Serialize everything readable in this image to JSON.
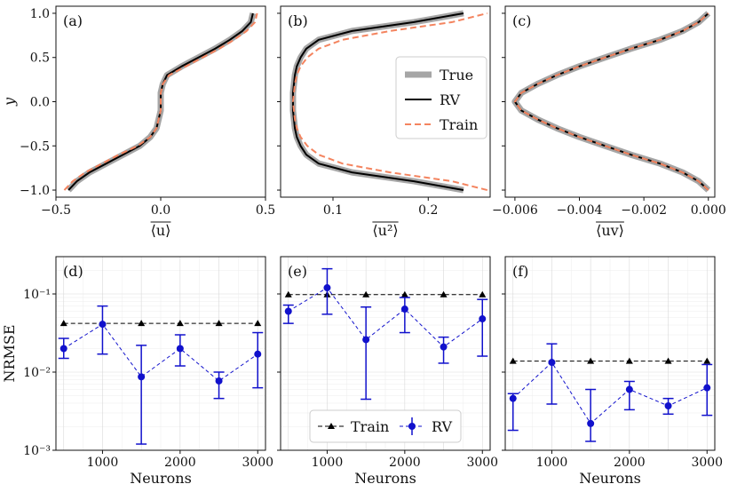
{
  "profile_panels": [
    {
      "label": "(a)",
      "xlabel": "⟨u⟩",
      "ylabel": "y",
      "xlim": [
        -0.5,
        0.5
      ],
      "xticks": [
        -0.5,
        0.0,
        0.5
      ],
      "xtick_labels": [
        "−0.5",
        "0.0",
        "0.5"
      ],
      "y": [
        -1.0,
        -0.9,
        -0.8,
        -0.7,
        -0.6,
        -0.5,
        -0.4,
        -0.3,
        -0.2,
        -0.1,
        0.0,
        0.1,
        0.2,
        0.3,
        0.4,
        0.5,
        0.6,
        0.7,
        0.8,
        0.9,
        1.0
      ],
      "true": [
        -0.44,
        -0.4,
        -0.34,
        -0.26,
        -0.18,
        -0.1,
        -0.05,
        -0.02,
        -0.01,
        0.0,
        0.0,
        0.0,
        0.01,
        0.03,
        0.1,
        0.18,
        0.26,
        0.33,
        0.39,
        0.43,
        0.44
      ],
      "rv": [
        -0.44,
        -0.4,
        -0.34,
        -0.26,
        -0.18,
        -0.1,
        -0.05,
        -0.02,
        -0.01,
        0.0,
        0.0,
        0.0,
        0.01,
        0.03,
        0.1,
        0.18,
        0.26,
        0.33,
        0.39,
        0.43,
        0.44
      ],
      "train": [
        -0.46,
        -0.42,
        -0.36,
        -0.28,
        -0.2,
        -0.11,
        -0.05,
        -0.02,
        -0.01,
        0.0,
        0.0,
        0.0,
        0.01,
        0.04,
        0.12,
        0.2,
        0.28,
        0.35,
        0.41,
        0.45,
        0.46
      ]
    },
    {
      "label": "(b)",
      "xlabel": "⟨u²⟩",
      "xlim": [
        0.045,
        0.265
      ],
      "xticks": [
        0.1,
        0.2
      ],
      "xtick_labels": [
        "0.1",
        "0.2"
      ],
      "y": [
        -1.0,
        -0.9,
        -0.8,
        -0.7,
        -0.6,
        -0.5,
        -0.4,
        -0.3,
        -0.2,
        -0.1,
        0.0,
        0.1,
        0.2,
        0.3,
        0.4,
        0.5,
        0.6,
        0.7,
        0.8,
        0.9,
        1.0
      ],
      "true": [
        0.237,
        0.185,
        0.12,
        0.085,
        0.072,
        0.066,
        0.062,
        0.06,
        0.059,
        0.058,
        0.058,
        0.058,
        0.059,
        0.06,
        0.062,
        0.066,
        0.072,
        0.085,
        0.12,
        0.185,
        0.237
      ],
      "rv": [
        0.237,
        0.185,
        0.12,
        0.085,
        0.072,
        0.066,
        0.062,
        0.06,
        0.059,
        0.058,
        0.058,
        0.058,
        0.059,
        0.06,
        0.062,
        0.066,
        0.072,
        0.085,
        0.12,
        0.185,
        0.237
      ],
      "train": [
        0.262,
        0.225,
        0.16,
        0.11,
        0.085,
        0.073,
        0.066,
        0.062,
        0.06,
        0.059,
        0.058,
        0.059,
        0.06,
        0.062,
        0.066,
        0.073,
        0.085,
        0.11,
        0.16,
        0.225,
        0.262
      ]
    },
    {
      "label": "(c)",
      "xlabel": "⟨uv⟩",
      "xlim": [
        -0.0063,
        0.0002
      ],
      "xticks": [
        -0.006,
        -0.004,
        -0.002,
        0.0
      ],
      "xtick_labels": [
        "−0.006",
        "−0.004",
        "−0.002",
        "0.000"
      ],
      "y": [
        -1.0,
        -0.9,
        -0.8,
        -0.7,
        -0.6,
        -0.5,
        -0.4,
        -0.3,
        -0.2,
        -0.1,
        0.0,
        0.1,
        0.2,
        0.3,
        0.4,
        0.5,
        0.6,
        0.7,
        0.8,
        0.9,
        1.0
      ],
      "true": [
        0.0,
        -0.0003,
        -0.0008,
        -0.0015,
        -0.0024,
        -0.0032,
        -0.004,
        -0.0047,
        -0.0053,
        -0.0058,
        -0.006,
        -0.0058,
        -0.0053,
        -0.0047,
        -0.004,
        -0.0032,
        -0.0024,
        -0.0015,
        -0.0008,
        -0.0003,
        0.0
      ],
      "rv": [
        0.0,
        -0.0003,
        -0.0008,
        -0.0015,
        -0.0024,
        -0.0032,
        -0.004,
        -0.0047,
        -0.0053,
        -0.0058,
        -0.006,
        -0.0058,
        -0.0053,
        -0.0047,
        -0.004,
        -0.0032,
        -0.0024,
        -0.0015,
        -0.0008,
        -0.0003,
        0.0
      ],
      "train": [
        0.0,
        -0.0003,
        -0.0008,
        -0.0015,
        -0.0024,
        -0.0032,
        -0.004,
        -0.0047,
        -0.0053,
        -0.0058,
        -0.006,
        -0.0058,
        -0.0053,
        -0.0047,
        -0.004,
        -0.0032,
        -0.0024,
        -0.0015,
        -0.0008,
        -0.0003,
        0.0
      ]
    }
  ],
  "profile_yticks": [
    -1.0,
    -0.5,
    0.0,
    0.5,
    1.0
  ],
  "profile_ytick_labels": [
    "−1.0",
    "−0.5",
    "0.0",
    "0.5",
    "1.0"
  ],
  "profile_legend": {
    "true": "True",
    "rv": "RV",
    "train": "Train"
  },
  "error_panels": [
    {
      "label": "(d)",
      "train": [
        0.042,
        0.042,
        0.042,
        0.042,
        0.042,
        0.042
      ],
      "rv": [
        0.02,
        0.041,
        0.0087,
        0.02,
        0.0077,
        0.017
      ],
      "rv_low": [
        0.015,
        0.017,
        0.0012,
        0.012,
        0.0046,
        0.0063
      ],
      "rv_high": [
        0.027,
        0.07,
        0.022,
        0.03,
        0.01,
        0.032
      ]
    },
    {
      "label": "(e)",
      "train": [
        0.098,
        0.098,
        0.098,
        0.098,
        0.098,
        0.098
      ],
      "rv": [
        0.06,
        0.12,
        0.026,
        0.064,
        0.021,
        0.048
      ],
      "rv_low": [
        0.042,
        0.055,
        0.0045,
        0.032,
        0.013,
        0.016
      ],
      "rv_high": [
        0.072,
        0.21,
        0.068,
        0.09,
        0.028,
        0.085
      ]
    },
    {
      "label": "(f)",
      "train": [
        0.0138,
        0.0138,
        0.0138,
        0.0138,
        0.0138,
        0.0138
      ],
      "rv": [
        0.0046,
        0.0133,
        0.0022,
        0.006,
        0.0037,
        0.0063
      ],
      "rv_low": [
        0.0018,
        0.0039,
        0.0013,
        0.0033,
        0.0029,
        0.0028
      ],
      "rv_high": [
        0.0053,
        0.023,
        0.006,
        0.0076,
        0.0046,
        0.0125
      ]
    }
  ],
  "error_x": [
    500,
    1000,
    1500,
    2000,
    2500,
    3000
  ],
  "error_xticks": [
    1000,
    2000,
    3000
  ],
  "error_xtick_labels": [
    "1000",
    "2000",
    "3000"
  ],
  "error_xlabel": "Neurons",
  "error_ylabel": "NRMSE",
  "error_ylim": [
    0.001,
    0.3
  ],
  "error_ytick_labels": [
    "10⁻³",
    "10⁻²",
    "10⁻¹"
  ],
  "error_legend": {
    "train": "Train",
    "rv": "RV"
  },
  "colors": {
    "true": "#a6a6a6",
    "rv": "#000000",
    "train": "#f4845f",
    "err_rv": "#1111cc",
    "err_train": "#000000"
  }
}
